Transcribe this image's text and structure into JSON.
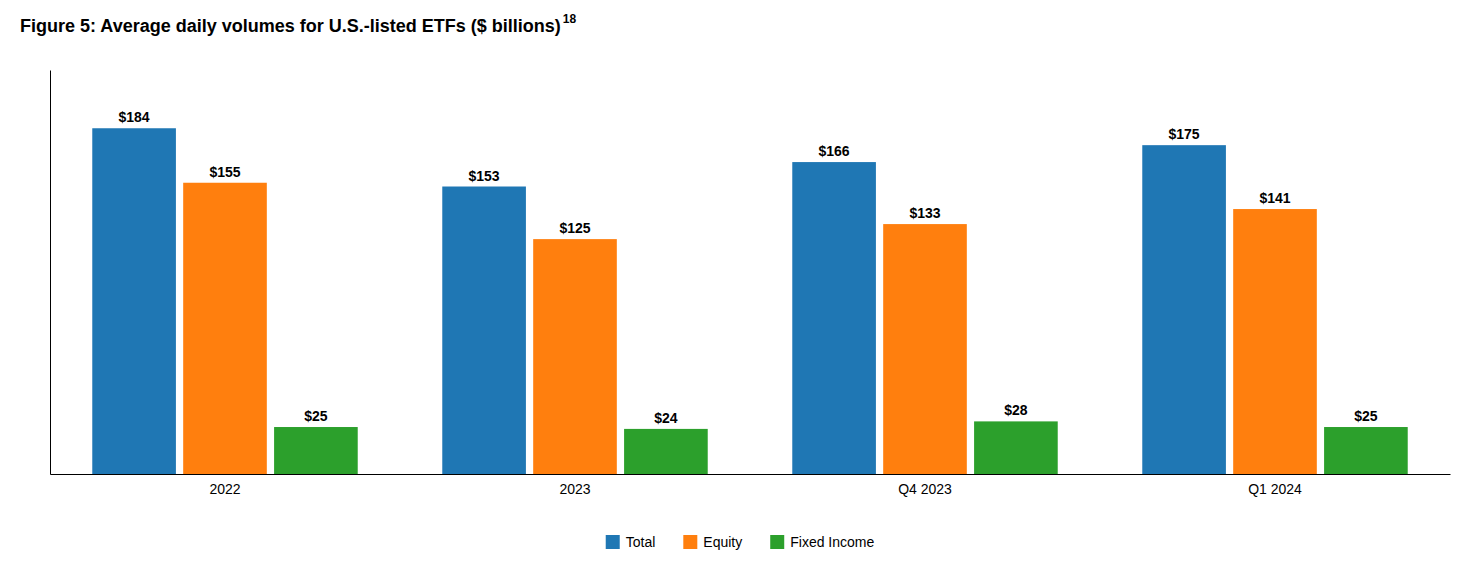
{
  "chart_data": {
    "type": "bar",
    "title": "Figure 5: Average daily volumes for U.S.-listed ETFs ($ billions)",
    "annotations": [
      "18"
    ],
    "categories": [
      "2022",
      "2023",
      "Q4 2023",
      "Q1 2024"
    ],
    "series": [
      {
        "name": "Total",
        "values": [
          184,
          153,
          166,
          175
        ],
        "value_labels": [
          "$184",
          "$153",
          "$166",
          "$175"
        ]
      },
      {
        "name": "Equity",
        "values": [
          155,
          125,
          133,
          141
        ],
        "value_labels": [
          "$155",
          "$125",
          "$133",
          "$141"
        ]
      },
      {
        "name": "Fixed Income",
        "values": [
          25,
          24,
          28,
          25
        ],
        "value_labels": [
          "$25",
          "$24",
          "$28",
          "$25"
        ]
      }
    ],
    "ylim": [
      0,
      215
    ],
    "yticks": [],
    "grid": false,
    "data_labels": true,
    "tick_labels": "x",
    "legend": "bottom"
  }
}
